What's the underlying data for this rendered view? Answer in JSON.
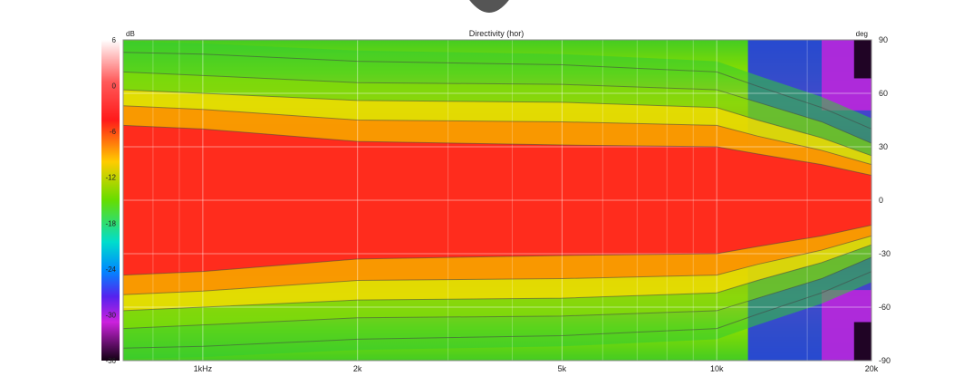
{
  "chart_data": {
    "type": "heatmap",
    "title": "Directivity (hor)",
    "colorbar": {
      "unit": "dB",
      "ticks": [
        6,
        0,
        -6,
        -12,
        -18,
        -24,
        -30,
        -36
      ],
      "range": [
        -36,
        6
      ]
    },
    "x": {
      "scale": "log",
      "range": [
        700,
        20000
      ],
      "ticks": [
        1000,
        2000,
        5000,
        10000,
        20000
      ],
      "tick_labels": [
        "1kHz",
        "2k",
        "5k",
        "10k",
        "20k"
      ]
    },
    "y": {
      "unit": "deg",
      "range": [
        -90,
        90
      ],
      "ticks": [
        90,
        60,
        30,
        0,
        -30,
        -60,
        -90
      ]
    },
    "beamwidth_contours": [
      {
        "level_db": -3,
        "freq": [
          700,
          1000,
          2000,
          5000,
          10000,
          12000,
          16000,
          20000
        ],
        "angle": [
          42,
          40,
          33,
          31,
          30,
          26,
          20,
          14
        ]
      },
      {
        "level_db": -6,
        "freq": [
          700,
          1000,
          2000,
          5000,
          10000,
          12000,
          16000,
          20000
        ],
        "angle": [
          53,
          51,
          45,
          44,
          42,
          36,
          28,
          20
        ]
      },
      {
        "level_db": -9,
        "freq": [
          700,
          1000,
          2000,
          5000,
          10000,
          12000,
          16000,
          20000
        ],
        "angle": [
          62,
          60,
          56,
          55,
          52,
          45,
          35,
          25
        ]
      },
      {
        "level_db": -12,
        "freq": [
          700,
          1000,
          2000,
          5000,
          10000,
          12000,
          16000,
          20000
        ],
        "angle": [
          72,
          70,
          66,
          65,
          62,
          55,
          44,
          32
        ]
      },
      {
        "level_db": -15,
        "freq": [
          700,
          1000,
          2000,
          5000,
          10000,
          12000,
          16000,
          20000
        ],
        "angle": [
          83,
          82,
          78,
          76,
          72,
          64,
          52,
          40
        ]
      }
    ],
    "grid": true
  }
}
